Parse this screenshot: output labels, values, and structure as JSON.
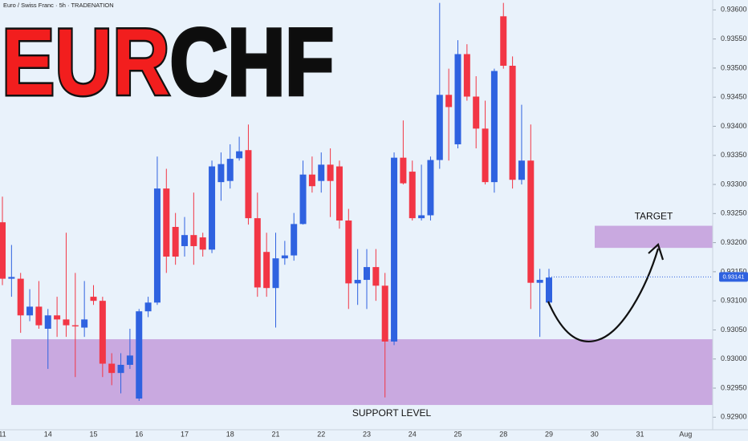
{
  "chart_data": {
    "type": "candlestick",
    "title": [
      "EUR",
      "CHF"
    ],
    "subtitle": "Euro / Swiss Franc · 5h · TRADENATION",
    "up_color": "#2f62e0",
    "down_color": "#f23645",
    "zone_color": "#c9a9e0",
    "ylim": [
      0.92877,
      0.93617
    ],
    "yticks": [
      {
        "value": 0.929,
        "label": "0.92900"
      },
      {
        "value": 0.9295,
        "label": "0.92950"
      },
      {
        "value": 0.93,
        "label": "0.93000"
      },
      {
        "value": 0.9305,
        "label": "0.93050"
      },
      {
        "value": 0.931,
        "label": "0.93100"
      },
      {
        "value": 0.9315,
        "label": "0.93150"
      },
      {
        "value": 0.932,
        "label": "0.93200"
      },
      {
        "value": 0.9325,
        "label": "0.93250"
      },
      {
        "value": 0.933,
        "label": "0.93300"
      },
      {
        "value": 0.9335,
        "label": "0.93350"
      },
      {
        "value": 0.934,
        "label": "0.93400"
      },
      {
        "value": 0.9345,
        "label": "0.93450"
      },
      {
        "value": 0.935,
        "label": "0.93500"
      },
      {
        "value": 0.9355,
        "label": "0.93550"
      },
      {
        "value": 0.936,
        "label": "0.93600"
      }
    ],
    "date_labels": [
      "11",
      "14",
      "15",
      "16",
      "17",
      "18",
      "21",
      "22",
      "23",
      "24",
      "25",
      "28",
      "29",
      "30",
      "31",
      "Aug"
    ],
    "open": [
      0.93235,
      0.93138,
      0.93138,
      0.93075,
      0.9309,
      0.93052,
      0.93075,
      0.93068,
      0.93058,
      0.93054,
      0.93107,
      0.931,
      0.92992,
      0.92976,
      0.9299,
      0.92932,
      0.93082,
      0.93097,
      0.93293,
      0.93227,
      0.93194,
      0.93213,
      0.93209,
      0.93188,
      0.93304,
      0.93306,
      0.93345,
      0.93359,
      0.93242,
      0.93184,
      0.93122,
      0.93173,
      0.93178,
      0.93232,
      0.93317,
      0.93306,
      0.93334,
      0.93331,
      0.93238,
      0.9313,
      0.93136,
      0.93158,
      0.93126,
      0.9303,
      0.93346,
      0.93322,
      0.93242,
      0.93247,
      0.93342,
      0.93454,
      0.93369,
      0.93524,
      0.93451,
      0.93396,
      0.93304,
      0.93589,
      0.93504,
      0.93308,
      0.93341,
      0.93131,
      0.93097
    ],
    "high": [
      0.93279,
      0.93196,
      0.93148,
      0.9312,
      0.93134,
      0.93086,
      0.93107,
      0.93217,
      0.93148,
      0.93134,
      0.93127,
      0.93107,
      0.9301,
      0.9301,
      0.93052,
      0.93086,
      0.93107,
      0.93348,
      0.93327,
      0.93251,
      0.93244,
      0.93286,
      0.93217,
      0.93341,
      0.93355,
      0.93369,
      0.93382,
      0.93403,
      0.93286,
      0.93217,
      0.93217,
      0.93203,
      0.93251,
      0.93341,
      0.93348,
      0.93355,
      0.93362,
      0.93341,
      0.93258,
      0.93189,
      0.93189,
      0.93189,
      0.93148,
      0.93355,
      0.9341,
      0.93341,
      0.93334,
      0.93348,
      0.93612,
      0.93499,
      0.93548,
      0.93541,
      0.93486,
      0.93444,
      0.93499,
      0.93612,
      0.9352,
      0.93437,
      0.93403,
      0.93155,
      0.93155
    ],
    "low": [
      0.93127,
      0.93107,
      0.93045,
      0.93065,
      0.93052,
      0.92983,
      0.93038,
      0.93038,
      0.92969,
      0.93038,
      0.93093,
      0.92969,
      0.92955,
      0.92941,
      0.92983,
      0.92928,
      0.93072,
      0.93093,
      0.93148,
      0.93162,
      0.93176,
      0.93162,
      0.93176,
      0.93182,
      0.93272,
      0.93293,
      0.93341,
      0.93231,
      0.93107,
      0.93107,
      0.93054,
      0.93162,
      0.93169,
      0.93231,
      0.93286,
      0.93286,
      0.93244,
      0.93224,
      0.93086,
      0.93093,
      0.93086,
      0.931,
      0.92934,
      0.93024,
      0.933,
      0.93238,
      0.93238,
      0.93238,
      0.93327,
      0.93341,
      0.93362,
      0.93444,
      0.93362,
      0.933,
      0.93286,
      0.93499,
      0.93293,
      0.933,
      0.93086,
      0.93038,
      0.93093
    ],
    "close": [
      0.93138,
      0.93141,
      0.93075,
      0.9309,
      0.93058,
      0.93075,
      0.93068,
      0.93058,
      0.93056,
      0.93068,
      0.931,
      0.92992,
      0.92976,
      0.9299,
      0.93006,
      0.93082,
      0.93097,
      0.93293,
      0.93176,
      0.93176,
      0.93213,
      0.93194,
      0.93188,
      0.93331,
      0.93335,
      0.93344,
      0.93357,
      0.93242,
      0.93123,
      0.93122,
      0.93173,
      0.93178,
      0.93232,
      0.93317,
      0.93297,
      0.93334,
      0.93306,
      0.93238,
      0.9313,
      0.93136,
      0.93158,
      0.93126,
      0.9303,
      0.93346,
      0.93302,
      0.93242,
      0.93247,
      0.93342,
      0.93454,
      0.93433,
      0.93524,
      0.93451,
      0.93396,
      0.93304,
      0.93495,
      0.93504,
      0.93308,
      0.93341,
      0.93131,
      0.93136,
      0.9314
    ],
    "last_price": 0.93141,
    "zones": [
      {
        "label": "SUPPORT LEVEL",
        "top": 0.93034,
        "bottom": 0.92921
      },
      {
        "label": "TARGET",
        "top": 0.93229,
        "bottom": 0.93191
      }
    ]
  }
}
